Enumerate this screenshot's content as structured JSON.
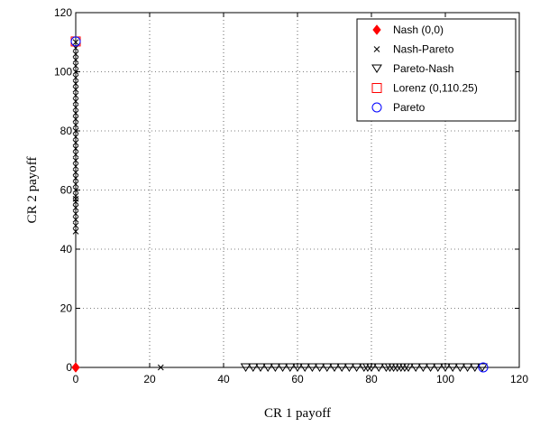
{
  "chart_data": {
    "type": "scatter",
    "xlabel": "CR 1 payoff",
    "ylabel": "CR 2 payoff",
    "xlim": [
      0,
      120
    ],
    "ylim": [
      0,
      120
    ],
    "xticks": [
      0,
      20,
      40,
      60,
      80,
      100,
      120
    ],
    "yticks": [
      0,
      20,
      40,
      60,
      80,
      100,
      120
    ],
    "grid": true,
    "legend_position": "top-right",
    "series": [
      {
        "name": "Nash (0,0)",
        "marker": "diamond-filled",
        "color": "#ff0000",
        "points": [
          [
            0,
            0
          ]
        ]
      },
      {
        "name": "Nash-Pareto",
        "marker": "x",
        "color": "#000000",
        "points": [
          [
            23,
            0
          ],
          [
            0,
            46
          ],
          [
            0,
            48
          ],
          [
            0,
            50
          ],
          [
            0,
            52
          ],
          [
            0,
            54
          ],
          [
            0,
            56
          ],
          [
            0,
            57
          ],
          [
            0,
            58
          ],
          [
            0,
            60
          ],
          [
            0,
            62
          ],
          [
            0,
            64
          ],
          [
            0,
            66
          ],
          [
            0,
            68
          ],
          [
            0,
            70
          ],
          [
            0,
            72
          ],
          [
            0,
            74
          ],
          [
            0,
            76
          ],
          [
            0,
            78
          ],
          [
            0,
            80
          ],
          [
            0,
            82
          ],
          [
            0,
            84
          ],
          [
            0,
            86
          ],
          [
            0,
            88
          ],
          [
            0,
            90
          ],
          [
            0,
            92
          ],
          [
            0,
            94
          ],
          [
            0,
            96
          ],
          [
            0,
            98
          ],
          [
            0,
            100
          ],
          [
            0,
            102
          ],
          [
            0,
            104
          ],
          [
            0,
            106
          ],
          [
            0,
            108
          ],
          [
            0,
            110
          ]
        ]
      },
      {
        "name": "Pareto-Nash",
        "marker": "triangle-down-open",
        "color": "#000000",
        "points": [
          [
            46,
            0
          ],
          [
            48,
            0
          ],
          [
            50,
            0
          ],
          [
            52,
            0
          ],
          [
            54,
            0
          ],
          [
            56,
            0
          ],
          [
            58,
            0
          ],
          [
            60,
            0
          ],
          [
            62,
            0
          ],
          [
            64,
            0
          ],
          [
            66,
            0
          ],
          [
            68,
            0
          ],
          [
            70,
            0
          ],
          [
            72,
            0
          ],
          [
            74,
            0
          ],
          [
            76,
            0
          ],
          [
            78,
            0
          ],
          [
            79,
            0
          ],
          [
            80,
            0
          ],
          [
            82,
            0
          ],
          [
            84,
            0
          ],
          [
            85,
            0
          ],
          [
            86,
            0
          ],
          [
            87,
            0
          ],
          [
            88,
            0
          ],
          [
            89,
            0
          ],
          [
            90,
            0
          ],
          [
            92,
            0
          ],
          [
            94,
            0
          ],
          [
            96,
            0
          ],
          [
            98,
            0
          ],
          [
            100,
            0
          ],
          [
            102,
            0
          ],
          [
            104,
            0
          ],
          [
            106,
            0
          ],
          [
            108,
            0
          ],
          [
            110,
            0
          ]
        ]
      },
      {
        "name": "Lorenz (0,110.25)",
        "marker": "square-open",
        "color": "#ff0000",
        "points": [
          [
            0,
            110.25
          ]
        ]
      },
      {
        "name": "Pareto",
        "marker": "circle-open",
        "color": "#0000ff",
        "points": [
          [
            0,
            110.25
          ],
          [
            110.25,
            0
          ]
        ]
      }
    ]
  }
}
